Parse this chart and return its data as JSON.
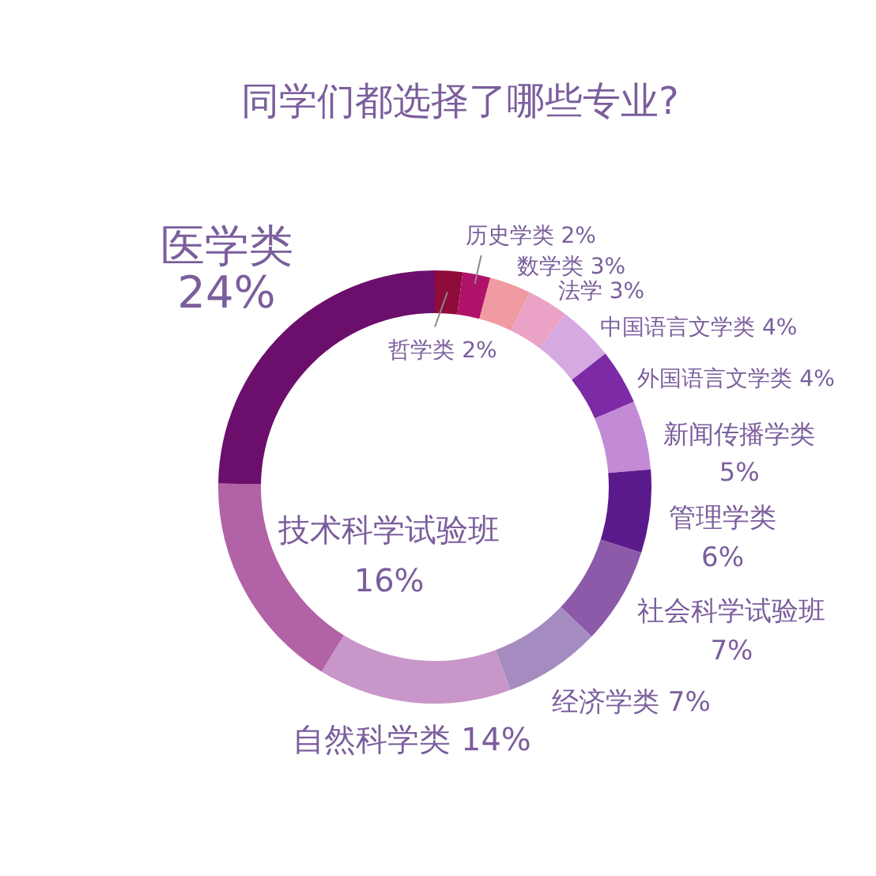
{
  "chart_data": {
    "type": "donut",
    "title": "同学们都选择了哪些专业?",
    "categories": [
      "哲学类",
      "历史学类",
      "数学类",
      "法学",
      "中国语言文学类",
      "外国语言文学类",
      "新闻传播学类",
      "管理学类",
      "社会科学试验班",
      "经济学类",
      "自然科学类",
      "技术科学试验班",
      "医学类"
    ],
    "values": [
      2,
      2,
      3,
      3,
      4,
      4,
      5,
      6,
      7,
      7,
      14,
      16,
      24
    ],
    "value_labels": [
      "2%",
      "2%",
      "3%",
      "3%",
      "4%",
      "4%",
      "5%",
      "6%",
      "7%",
      "7%",
      "14%",
      "16%",
      "24%"
    ],
    "colors": [
      "#8e0b3a",
      "#b0126a",
      "#f09aa2",
      "#eaa3c6",
      "#d6a9e3",
      "#7c2aa6",
      "#c38ad6",
      "#5b1a8c",
      "#8c5aa8",
      "#a48bc0",
      "#c996c9",
      "#b262a6",
      "#6b0e6c"
    ]
  }
}
